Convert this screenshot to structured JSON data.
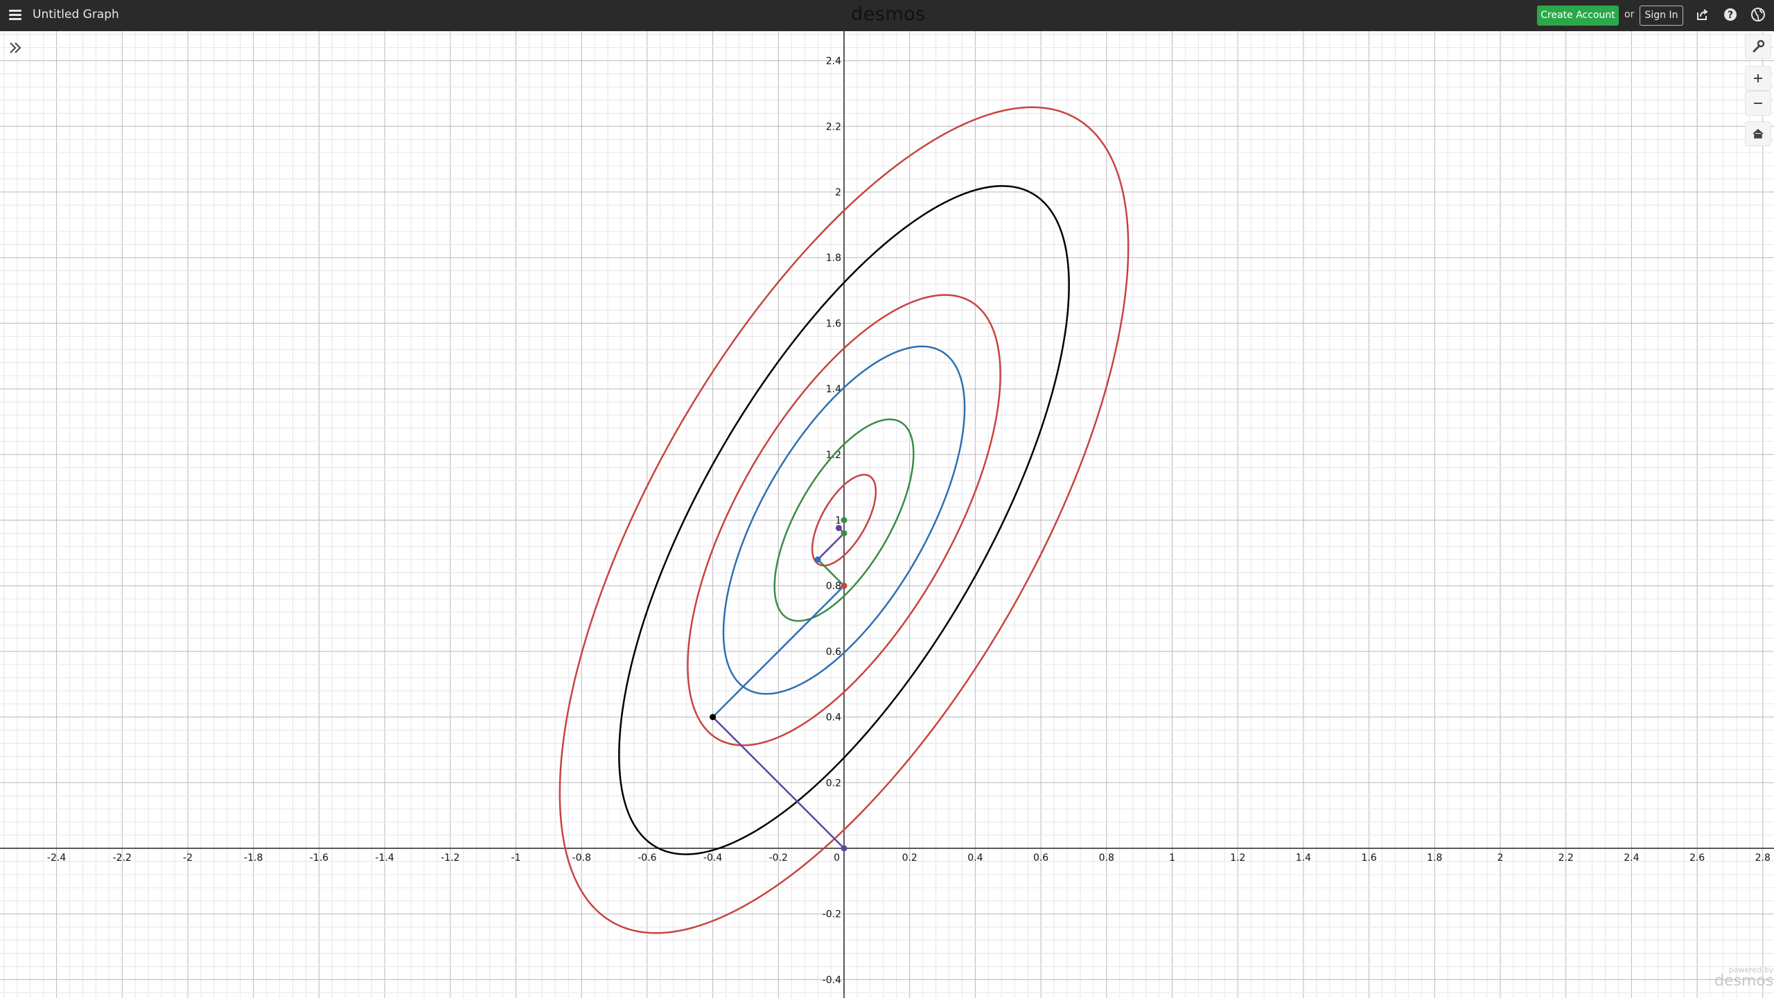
{
  "header": {
    "title": "Untitled Graph",
    "brand": "desmos",
    "create_account": "Create Account",
    "or": "or",
    "sign_in": "Sign In"
  },
  "icons": {
    "menu": "hamburger-menu-icon",
    "share": "share-icon",
    "help": "help-icon",
    "language": "globe-icon",
    "expand": "double-chevron-right-icon",
    "settings": "wrench-icon",
    "zoom_in": "plus-icon",
    "zoom_out": "minus-icon",
    "home": "home-icon"
  },
  "watermark": {
    "line1": "powered by",
    "line2": "desmos"
  },
  "colors": {
    "topbar": "#2a2a2a",
    "create_button": "#2ba84a",
    "red": "#c74440",
    "blue": "#2d70b3",
    "green": "#388c46",
    "purple": "#6042a6",
    "black": "#000000"
  },
  "chart_data": {
    "type": "scatter",
    "xlim": [
      -2.57,
      2.85
    ],
    "ylim": [
      -0.45,
      2.5
    ],
    "grid": true,
    "x_ticks": [
      "-2.4",
      "-2.2",
      "-2",
      "-1.8",
      "-1.6",
      "-1.4",
      "-1.2",
      "-1",
      "-0.8",
      "-0.6",
      "-0.4",
      "-0.2",
      "0",
      "0.2",
      "0.4",
      "0.6",
      "0.8",
      "1",
      "1.2",
      "1.4",
      "1.6",
      "1.8",
      "2",
      "2.2",
      "2.4",
      "2.6",
      "2.8"
    ],
    "y_ticks": [
      "-0.4",
      "-0.2",
      "0.2",
      "0.4",
      "0.6",
      "0.8",
      "1",
      "1.2",
      "1.4",
      "1.6",
      "1.8",
      "2",
      "2.2",
      "2.4"
    ],
    "ellipses": [
      {
        "color": "#c74440",
        "cx": 0.0,
        "cy": 1.0,
        "a": 1.414,
        "b": 0.578,
        "angle_deg": 60
      },
      {
        "color": "#000000",
        "cx": 0.0,
        "cy": 1.0,
        "a": 1.149,
        "b": 0.432,
        "angle_deg": 60
      },
      {
        "color": "#c74440",
        "cx": 0.0,
        "cy": 1.0,
        "a": 0.77,
        "b": 0.324,
        "angle_deg": 60
      },
      {
        "color": "#2d70b3",
        "cx": 0.0,
        "cy": 1.0,
        "a": 0.594,
        "b": 0.25,
        "angle_deg": 60
      },
      {
        "color": "#388c46",
        "cx": 0.0,
        "cy": 1.0,
        "a": 0.345,
        "b": 0.142,
        "angle_deg": 60
      },
      {
        "color": "#c74440",
        "cx": 0.0,
        "cy": 1.0,
        "a": 0.155,
        "b": 0.067,
        "angle_deg": 60
      }
    ],
    "segments": [
      {
        "color": "#6042a6",
        "from": [
          0,
          0
        ],
        "to": [
          -0.4,
          0.4
        ]
      },
      {
        "color": "#2d70b3",
        "from": [
          -0.4,
          0.4
        ],
        "to": [
          0,
          0.8
        ]
      },
      {
        "color": "#388c46",
        "from": [
          0,
          0.8
        ],
        "to": [
          -0.08,
          0.88
        ]
      },
      {
        "color": "#6042a6",
        "from": [
          -0.08,
          0.88
        ],
        "to": [
          0,
          0.96
        ]
      },
      {
        "color": "#c74440",
        "from": [
          0,
          0.96
        ],
        "to": [
          -0.016,
          0.976
        ]
      }
    ],
    "points": [
      {
        "color": "#6042a6",
        "x": 0,
        "y": 0
      },
      {
        "color": "#000000",
        "x": -0.4,
        "y": 0.4
      },
      {
        "color": "#c74440",
        "x": 0,
        "y": 0.8
      },
      {
        "color": "#2d70b3",
        "x": -0.08,
        "y": 0.88
      },
      {
        "color": "#388c46",
        "x": 0,
        "y": 0.96
      },
      {
        "color": "#6042a6",
        "x": -0.016,
        "y": 0.976
      },
      {
        "color": "#388c46",
        "x": 0,
        "y": 1.0
      }
    ]
  }
}
